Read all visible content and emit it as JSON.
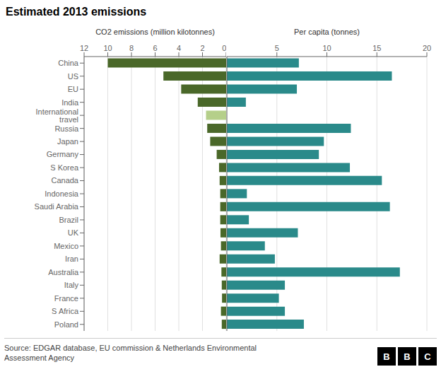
{
  "chart_data": [
    {
      "type": "bar",
      "orientation": "horizontal",
      "title": "Estimated 2013 emissions",
      "x_label": "CO2 emissions (million kilotonnes)",
      "categories": [
        "China",
        "US",
        "EU",
        "India",
        "International travel",
        "Russia",
        "Japan",
        "Germany",
        "S Korea",
        "Canada",
        "Indonesia",
        "Saudi Arabia",
        "Brazil",
        "UK",
        "Mexico",
        "Iran",
        "Australia",
        "Italy",
        "France",
        "S Africa",
        "Poland"
      ],
      "values": [
        10.0,
        5.3,
        3.8,
        2.4,
        1.7,
        1.6,
        1.35,
        0.8,
        0.6,
        0.55,
        0.5,
        0.5,
        0.5,
        0.48,
        0.44,
        0.55,
        0.4,
        0.37,
        0.35,
        0.44,
        0.37
      ],
      "colors": [
        "#4a6829",
        "#4a6829",
        "#4a6829",
        "#4a6829",
        "#b5cf8a",
        "#4a6829",
        "#4a6829",
        "#4a6829",
        "#4a6829",
        "#4a6829",
        "#4a6829",
        "#4a6829",
        "#4a6829",
        "#4a6829",
        "#4a6829",
        "#4a6829",
        "#4a6829",
        "#4a6829",
        "#4a6829",
        "#4a6829",
        "#4a6829"
      ],
      "xlim": [
        12,
        0
      ],
      "xticks": [
        12,
        10,
        8,
        6,
        4,
        2,
        0
      ],
      "grid": true,
      "annotations": [
        "Source: EDGAR database, EU commission & Netherlands Environmental\nAssessment Agency",
        "B",
        "B",
        "C"
      ]
    },
    {
      "type": "bar",
      "orientation": "horizontal",
      "x_label": "Per capita (tonnes)",
      "categories": [
        "China",
        "US",
        "EU",
        "India",
        "International travel",
        "Russia",
        "Japan",
        "Germany",
        "S Korea",
        "Canada",
        "Indonesia",
        "Saudi Arabia",
        "Brazil",
        "UK",
        "Mexico",
        "Iran",
        "Australia",
        "Italy",
        "France",
        "S Africa",
        "Poland"
      ],
      "values": [
        7.2,
        16.5,
        7.0,
        1.9,
        null,
        12.4,
        9.7,
        9.2,
        12.3,
        15.5,
        2.0,
        16.3,
        2.2,
        7.1,
        3.8,
        4.8,
        17.3,
        5.8,
        5.2,
        5.8,
        7.7
      ],
      "color": "#2a8a8a",
      "xlim": [
        0,
        20
      ],
      "xticks": [
        0,
        5,
        10,
        15,
        20
      ],
      "grid": true,
      "tick_labels": "x"
    }
  ]
}
